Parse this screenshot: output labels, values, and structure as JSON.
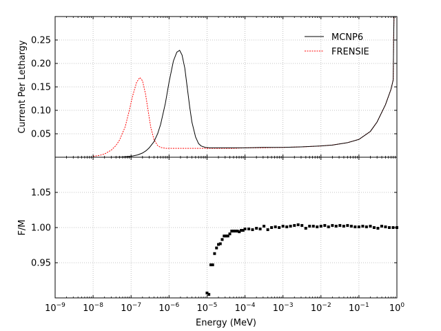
{
  "chart_data": [
    {
      "type": "line",
      "ylabel": "Current Per Lethargy",
      "xscale": "log",
      "xlim": [
        1e-09,
        1
      ],
      "ylim": [
        0,
        0.3
      ],
      "grid": true,
      "legend_position": "top-right",
      "yticks": [
        0.05,
        0.1,
        0.15,
        0.2,
        0.25
      ],
      "ytick_labels": [
        "0.05",
        "0.10",
        "0.15",
        "0.20",
        "0.25"
      ],
      "series": [
        {
          "name": "MCNP6",
          "color": "#000000",
          "style": "solid",
          "x": [
            1e-08,
            3e-08,
            6e-08,
            1e-07,
            1.5e-07,
            2e-07,
            2.5e-07,
            3e-07,
            4e-07,
            5e-07,
            6e-07,
            8e-07,
            1e-06,
            1.3e-06,
            1.6e-06,
            1.9e-06,
            2.2e-06,
            2.6e-06,
            3e-06,
            3.5e-06,
            4e-06,
            5e-06,
            6e-06,
            7e-06,
            9e-06,
            1.2e-05,
            2e-05,
            5e-05,
            0.0001,
            0.0003,
            0.001,
            0.003,
            0.01,
            0.02,
            0.05,
            0.1,
            0.2,
            0.3,
            0.5,
            0.7,
            0.8,
            0.82,
            0.85
          ],
          "y": [
            0.0,
            0.0,
            0.0005,
            0.002,
            0.005,
            0.009,
            0.014,
            0.02,
            0.033,
            0.05,
            0.07,
            0.115,
            0.16,
            0.205,
            0.224,
            0.228,
            0.218,
            0.19,
            0.15,
            0.107,
            0.075,
            0.043,
            0.029,
            0.024,
            0.021,
            0.02,
            0.02,
            0.02,
            0.02,
            0.021,
            0.021,
            0.022,
            0.024,
            0.026,
            0.031,
            0.038,
            0.055,
            0.075,
            0.112,
            0.145,
            0.165,
            0.25,
            0.33
          ]
        },
        {
          "name": "FRENSIE",
          "color": "#ff0000",
          "style": "dashed",
          "x": [
            1e-08,
            1.5e-08,
            2e-08,
            3e-08,
            4e-08,
            5e-08,
            7e-08,
            9e-08,
            1.1e-07,
            1.4e-07,
            1.7e-07,
            2e-07,
            2.4e-07,
            2.8e-07,
            3.3e-07,
            4e-07,
            5e-07,
            6e-07,
            8e-07,
            1e-06,
            2e-06,
            5e-06,
            1e-05,
            2e-05,
            5e-05,
            0.0001,
            0.0003,
            0.001,
            0.003,
            0.01,
            0.02,
            0.05,
            0.1,
            0.2,
            0.3,
            0.5,
            0.7,
            0.8,
            0.82,
            0.85
          ],
          "y": [
            0.002,
            0.004,
            0.007,
            0.015,
            0.025,
            0.037,
            0.065,
            0.1,
            0.131,
            0.16,
            0.17,
            0.163,
            0.135,
            0.1,
            0.064,
            0.038,
            0.025,
            0.021,
            0.019,
            0.019,
            0.019,
            0.019,
            0.019,
            0.019,
            0.019,
            0.02,
            0.02,
            0.021,
            0.022,
            0.024,
            0.026,
            0.031,
            0.038,
            0.055,
            0.075,
            0.112,
            0.145,
            0.165,
            0.25,
            0.33
          ]
        }
      ]
    },
    {
      "type": "scatter",
      "ylabel": "F/M",
      "xlabel": "Energy (MeV)",
      "xscale": "log",
      "xlim": [
        1e-09,
        1
      ],
      "ylim": [
        0.9,
        1.1
      ],
      "grid": true,
      "yticks": [
        0.95,
        1.0,
        1.05
      ],
      "ytick_labels": [
        "0.95",
        "1.00",
        "1.05"
      ],
      "xticks": [
        1e-09,
        1e-08,
        1e-07,
        1e-06,
        1e-05,
        0.0001,
        0.001,
        0.01,
        0.1,
        1
      ],
      "xtick_labels": [
        {
          "base": "10",
          "exp": "−9"
        },
        {
          "base": "10",
          "exp": "−8"
        },
        {
          "base": "10",
          "exp": "−7"
        },
        {
          "base": "10",
          "exp": "−6"
        },
        {
          "base": "10",
          "exp": "−5"
        },
        {
          "base": "10",
          "exp": "−4"
        },
        {
          "base": "10",
          "exp": "−3"
        },
        {
          "base": "10",
          "exp": "−2"
        },
        {
          "base": "10",
          "exp": "−1"
        },
        {
          "base": "10",
          "exp": "0"
        }
      ],
      "series": [
        {
          "color": "#000000",
          "x": [
            1e-05,
            1.12e-05,
            1.26e-05,
            1.41e-05,
            1.58e-05,
            1.78e-05,
            2e-05,
            2.24e-05,
            2.51e-05,
            2.82e-05,
            3.16e-05,
            3.55e-05,
            3.98e-05,
            4.47e-05,
            5.01e-05,
            5.62e-05,
            6.31e-05,
            7.08e-05,
            7.94e-05,
            8.91e-05,
            0.0001,
            0.000126,
            0.000158,
            0.0002,
            0.000251,
            0.000316,
            0.000398,
            0.000501,
            0.000631,
            0.000794,
            0.001,
            0.00126,
            0.00158,
            0.002,
            0.00251,
            0.00316,
            0.00398,
            0.00501,
            0.00631,
            0.00794,
            0.01,
            0.0126,
            0.0158,
            0.02,
            0.0251,
            0.0316,
            0.0398,
            0.0501,
            0.0631,
            0.0794,
            0.1,
            0.126,
            0.158,
            0.2,
            0.251,
            0.316,
            0.398,
            0.501,
            0.631,
            0.794,
            1
          ],
          "y": [
            0.907,
            0.905,
            0.947,
            0.947,
            0.963,
            0.971,
            0.976,
            0.977,
            0.983,
            0.988,
            0.988,
            0.988,
            0.991,
            0.995,
            0.995,
            0.995,
            0.995,
            0.994,
            0.996,
            0.996,
            0.998,
            0.998,
            0.997,
            0.999,
            0.998,
            1.002,
            0.997,
            1.0,
            1.001,
            1.0,
            1.002,
            1.001,
            1.002,
            1.003,
            1.004,
            1.003,
            0.999,
            1.002,
            1.002,
            1.001,
            1.002,
            1.003,
            1.001,
            1.003,
            1.002,
            1.003,
            1.002,
            1.003,
            1.002,
            1.001,
            1.001,
            1.002,
            1.001,
            1.002,
            1.0,
            0.999,
            1.002,
            1.001,
            1.0,
            1.0,
            1.0
          ]
        }
      ]
    }
  ]
}
